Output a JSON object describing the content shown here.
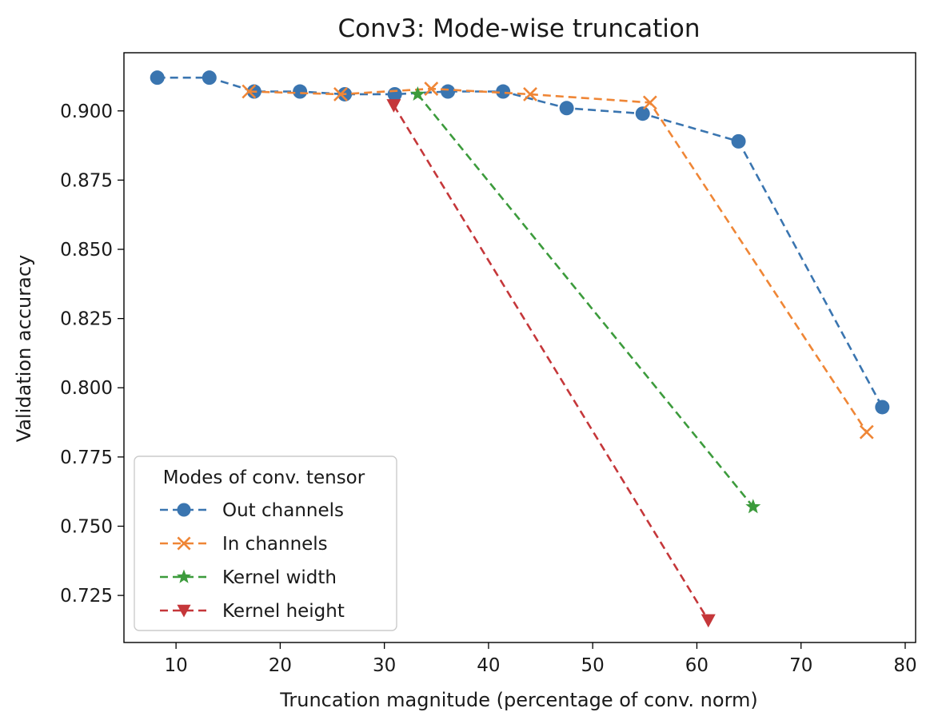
{
  "chart_data": {
    "type": "line",
    "title": "Conv3: Mode-wise truncation",
    "xlabel": "Truncation magnitude (percentage of conv. norm)",
    "ylabel": "Validation accuracy",
    "xlim": [
      5,
      81
    ],
    "ylim": [
      0.708,
      0.921
    ],
    "xticks": [
      10,
      20,
      30,
      40,
      50,
      60,
      70,
      80
    ],
    "yticks": [
      0.725,
      0.75,
      0.775,
      0.8,
      0.825,
      0.85,
      0.875,
      0.9
    ],
    "xtick_labels": [
      "10",
      "20",
      "30",
      "40",
      "50",
      "60",
      "70",
      "80"
    ],
    "ytick_labels": [
      "0.725",
      "0.750",
      "0.775",
      "0.800",
      "0.825",
      "0.850",
      "0.875",
      "0.900"
    ],
    "grid": false,
    "legend": {
      "title": "Modes of conv. tensor",
      "placement": "lower-left"
    },
    "series": [
      {
        "name": "Out channels",
        "color": "#3a75b0",
        "marker": "circle",
        "linestyle": "dashed",
        "x": [
          8.2,
          13.2,
          17.5,
          21.9,
          26.2,
          31.0,
          36.1,
          41.4,
          47.5,
          54.8,
          64.0,
          77.8
        ],
        "y": [
          0.912,
          0.912,
          0.907,
          0.907,
          0.906,
          0.906,
          0.907,
          0.907,
          0.901,
          0.899,
          0.889,
          0.793
        ]
      },
      {
        "name": "In channels",
        "color": "#ef8636",
        "marker": "x",
        "linestyle": "dashed",
        "x": [
          17.0,
          25.8,
          34.5,
          44.0,
          55.5,
          76.3
        ],
        "y": [
          0.907,
          0.906,
          0.908,
          0.906,
          0.903,
          0.784
        ]
      },
      {
        "name": "Kernel width",
        "color": "#3c9b3c",
        "marker": "star",
        "linestyle": "dashed",
        "x": [
          33.2,
          65.4
        ],
        "y": [
          0.906,
          0.757
        ]
      },
      {
        "name": "Kernel height",
        "color": "#c5373a",
        "marker": "triangle-down",
        "linestyle": "dashed",
        "x": [
          30.9,
          61.1
        ],
        "y": [
          0.902,
          0.716
        ]
      }
    ]
  }
}
